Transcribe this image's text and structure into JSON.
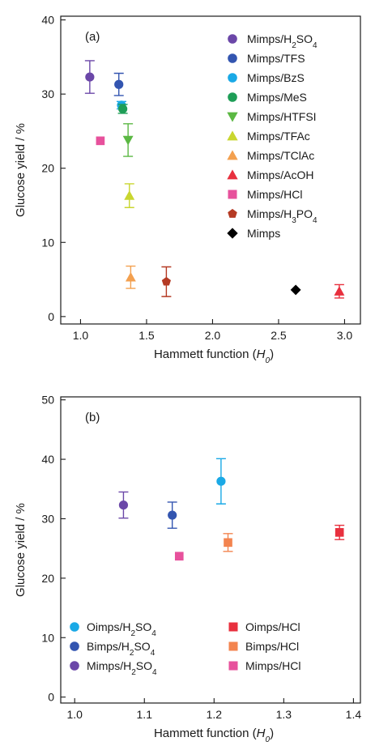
{
  "chart_data": [
    {
      "type": "scatter",
      "panel_label": "(a)",
      "xlabel": "Hammett function",
      "xlabel_symbol": "H",
      "xlabel_sub": "0",
      "ylabel": "Glucose yield / %",
      "xlim": [
        0.85,
        3.12
      ],
      "ylim": [
        -1,
        40.5
      ],
      "xticks": [
        1.0,
        1.5,
        2.0,
        2.5,
        3.0
      ],
      "xtick_labels": [
        "1.0",
        "1.5",
        "2.0",
        "2.5",
        "3.0"
      ],
      "yticks": [
        0,
        10,
        20,
        30,
        40
      ],
      "ytick_labels": [
        "0",
        "10",
        "20",
        "30",
        "40"
      ],
      "legend_position": "top-right",
      "series": [
        {
          "key": "s1",
          "name": "Mimps/H",
          "sub": "2",
          "name2": "SO",
          "sub2": "4",
          "marker": "circle",
          "color": "#6b47a8",
          "points": [
            {
              "x": 1.07,
              "y": 32.3,
              "err": 2.2
            }
          ]
        },
        {
          "key": "s2",
          "name": "Mimps/TFS",
          "marker": "circle",
          "color": "#3355b0",
          "points": [
            {
              "x": 1.29,
              "y": 31.3,
              "err": 1.5
            }
          ]
        },
        {
          "key": "s3",
          "name": "Mimps/BzS",
          "marker": "circle",
          "color": "#1aa9e6",
          "points": [
            {
              "x": 1.31,
              "y": 28.5,
              "err": 0.5
            }
          ]
        },
        {
          "key": "s4",
          "name": "Mimps/MeS",
          "marker": "circle",
          "color": "#1e9e57",
          "points": [
            {
              "x": 1.32,
              "y": 28.0,
              "err": 0.6
            }
          ]
        },
        {
          "key": "s5",
          "name": "Mimps/HTFSI",
          "marker": "triangle-down",
          "color": "#5bb843",
          "points": [
            {
              "x": 1.36,
              "y": 23.8,
              "err": 2.2
            }
          ]
        },
        {
          "key": "s6",
          "name": "Mimps/TFAc",
          "marker": "triangle-up",
          "color": "#c9d62f",
          "points": [
            {
              "x": 1.37,
              "y": 16.3,
              "err": 1.6
            }
          ]
        },
        {
          "key": "s7",
          "name": "Mimps/TClAc",
          "marker": "triangle-up",
          "color": "#f3a04f",
          "points": [
            {
              "x": 1.38,
              "y": 5.3,
              "err": 1.5
            }
          ]
        },
        {
          "key": "s8",
          "name": "Mimps/AcOH",
          "marker": "triangle-up",
          "color": "#e8303e",
          "points": [
            {
              "x": 2.96,
              "y": 3.4,
              "err": 0.9
            }
          ]
        },
        {
          "key": "s9",
          "name": "Mimps/HCl",
          "marker": "square",
          "color": "#e7519c",
          "points": [
            {
              "x": 1.15,
              "y": 23.7,
              "err": 0
            }
          ]
        },
        {
          "key": "s10",
          "name": "Mimps/H",
          "sub": "3",
          "name2": "PO",
          "sub2": "4",
          "marker": "pentagon",
          "color": "#b53a24",
          "points": [
            {
              "x": 1.65,
              "y": 4.7,
              "err": 2.0
            }
          ]
        },
        {
          "key": "s11",
          "name": "Mimps",
          "marker": "diamond",
          "color": "#000000",
          "points": [
            {
              "x": 2.63,
              "y": 3.6,
              "err": 0
            }
          ]
        }
      ]
    },
    {
      "type": "scatter",
      "panel_label": "(b)",
      "xlabel": "Hammett function",
      "xlabel_symbol": "H",
      "xlabel_sub": "0",
      "ylabel": "Glucose yield / %",
      "xlim": [
        0.98,
        1.41
      ],
      "ylim": [
        -1,
        50.5
      ],
      "xticks": [
        1.0,
        1.1,
        1.2,
        1.3,
        1.4
      ],
      "xtick_labels": [
        "1.0",
        "1.1",
        "1.2",
        "1.3",
        "1.4"
      ],
      "yticks": [
        0,
        10,
        20,
        30,
        40,
        50
      ],
      "ytick_labels": [
        "0",
        "10",
        "20",
        "30",
        "40",
        "50"
      ],
      "legend_position": "bottom",
      "series": [
        {
          "key": "t1",
          "name": "Oimps/H",
          "sub": "2",
          "name2": "SO",
          "sub2": "4",
          "marker": "circle",
          "color": "#1aa9e6",
          "points": [
            {
              "x": 1.21,
              "y": 36.3,
              "err": 3.8
            }
          ]
        },
        {
          "key": "t2",
          "name": "Bimps/H",
          "sub": "2",
          "name2": "SO",
          "sub2": "4",
          "marker": "circle",
          "color": "#3355b0",
          "points": [
            {
              "x": 1.14,
              "y": 30.6,
              "err": 2.2
            }
          ]
        },
        {
          "key": "t3",
          "name": "Mimps/H",
          "sub": "2",
          "name2": "SO",
          "sub2": "4",
          "marker": "circle",
          "color": "#6b47a8",
          "points": [
            {
              "x": 1.07,
              "y": 32.3,
              "err": 2.2
            }
          ]
        },
        {
          "key": "t4",
          "name": "Oimps/HCl",
          "marker": "square",
          "color": "#e8303e",
          "points": [
            {
              "x": 1.38,
              "y": 27.7,
              "err": 1.2
            }
          ]
        },
        {
          "key": "t5",
          "name": "Bimps/HCl",
          "marker": "square",
          "color": "#f3844f",
          "points": [
            {
              "x": 1.22,
              "y": 26.0,
              "err": 1.5
            }
          ]
        },
        {
          "key": "t6",
          "name": "Mimps/HCl",
          "marker": "square",
          "color": "#e7519c",
          "points": [
            {
              "x": 1.15,
              "y": 23.7,
              "err": 0
            }
          ]
        }
      ]
    }
  ]
}
